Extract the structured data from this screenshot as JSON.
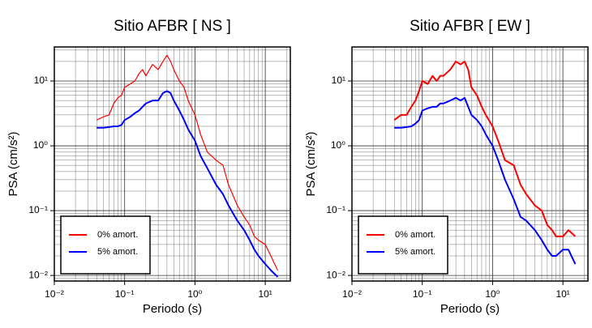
{
  "chart_data": [
    {
      "type": "line",
      "title": "Sitio AFBR [ NS ]",
      "x_label": "Periodo (s)",
      "y_label": "PSA (cm/s²)",
      "log_x": true,
      "log_y": true,
      "grid": true,
      "legend": "lower left",
      "xlim": [
        0.01,
        22.7
      ],
      "ylim": [
        0.0082,
        33.5
      ],
      "xticks": [
        {
          "value": 0.01,
          "label": "10⁻²"
        },
        {
          "value": 0.1,
          "label": "10⁻¹"
        },
        {
          "value": 1,
          "label": "10⁰"
        },
        {
          "value": 10,
          "label": "10¹"
        }
      ],
      "yticks": [
        {
          "value": 0.01,
          "label": "10⁻²"
        },
        {
          "value": 0.1,
          "label": "10⁻¹"
        },
        {
          "value": 1,
          "label": "10⁰"
        },
        {
          "value": 10,
          "label": "10¹"
        }
      ],
      "x": [
        0.04,
        0.05,
        0.06,
        0.07,
        0.08,
        0.09,
        0.1,
        0.12,
        0.14,
        0.16,
        0.18,
        0.2,
        0.25,
        0.3,
        0.35,
        0.4,
        0.45,
        0.5,
        0.6,
        0.7,
        0.8,
        1.0,
        1.2,
        1.5,
        2,
        2.5,
        3,
        4,
        5,
        6,
        7,
        8,
        10,
        12,
        15
      ],
      "series": [
        {
          "name": "0% amort.",
          "color": "#ff0000",
          "width": 1.2,
          "values": [
            2.5,
            2.8,
            3,
            4.5,
            5.5,
            6,
            8,
            9,
            10,
            13,
            15,
            12,
            18,
            15,
            20,
            25,
            20,
            15,
            10,
            8,
            5,
            3,
            1.5,
            0.8,
            0.6,
            0.5,
            0.25,
            0.12,
            0.08,
            0.06,
            0.04,
            0.035,
            0.03,
            0.02,
            0.012
          ]
        },
        {
          "name": "5% amort.",
          "color": "#0000ff",
          "width": 2,
          "values": [
            1.9,
            1.9,
            1.95,
            2,
            2,
            2.1,
            2.5,
            2.8,
            3.2,
            3.5,
            4,
            4.5,
            5,
            5,
            6.5,
            7,
            6.5,
            5,
            3.5,
            2.5,
            1.8,
            1.2,
            0.7,
            0.45,
            0.25,
            0.18,
            0.12,
            0.07,
            0.05,
            0.035,
            0.025,
            0.02,
            0.015,
            0.012,
            0.0095
          ]
        }
      ]
    },
    {
      "type": "line",
      "title": "Sitio AFBR [ EW ]",
      "x_label": "Periodo (s)",
      "y_label": "PSA (cm/s²)",
      "log_x": true,
      "log_y": true,
      "grid": true,
      "legend": "lower left",
      "xlim": [
        0.01,
        22.7
      ],
      "ylim": [
        0.0082,
        33.5
      ],
      "xticks": [
        {
          "value": 0.01,
          "label": "10⁻²"
        },
        {
          "value": 0.1,
          "label": "10⁻¹"
        },
        {
          "value": 1,
          "label": "10⁰"
        },
        {
          "value": 10,
          "label": "10¹"
        }
      ],
      "yticks": [
        {
          "value": 0.01,
          "label": "10⁻²"
        },
        {
          "value": 0.1,
          "label": "10⁻¹"
        },
        {
          "value": 1,
          "label": "10⁰"
        },
        {
          "value": 10,
          "label": "10¹"
        }
      ],
      "x": [
        0.04,
        0.05,
        0.06,
        0.07,
        0.08,
        0.09,
        0.1,
        0.12,
        0.14,
        0.16,
        0.18,
        0.2,
        0.25,
        0.3,
        0.35,
        0.4,
        0.45,
        0.5,
        0.6,
        0.7,
        0.8,
        1.0,
        1.2,
        1.5,
        2,
        2.5,
        3,
        4,
        5,
        6,
        7,
        8,
        10,
        12,
        15
      ],
      "series": [
        {
          "name": "0% amort.",
          "color": "#ff0000",
          "width": 2,
          "values": [
            2.5,
            3,
            3,
            4,
            5,
            7,
            10,
            9,
            12,
            10,
            12,
            12,
            15,
            20,
            18,
            20,
            15,
            8,
            6,
            4,
            3,
            2,
            1.2,
            0.6,
            0.5,
            0.25,
            0.18,
            0.12,
            0.1,
            0.06,
            0.05,
            0.04,
            0.04,
            0.05,
            0.04
          ]
        },
        {
          "name": "5% amort.",
          "color": "#0000ff",
          "width": 2,
          "values": [
            1.9,
            1.9,
            1.95,
            2,
            2.2,
            2.5,
            3.5,
            3.8,
            4,
            4,
            4.5,
            4.5,
            5,
            5.5,
            5,
            5.5,
            4,
            3,
            2.5,
            2,
            1.5,
            1,
            0.6,
            0.3,
            0.15,
            0.08,
            0.07,
            0.05,
            0.035,
            0.025,
            0.02,
            0.02,
            0.025,
            0.025,
            0.015
          ]
        }
      ]
    }
  ]
}
